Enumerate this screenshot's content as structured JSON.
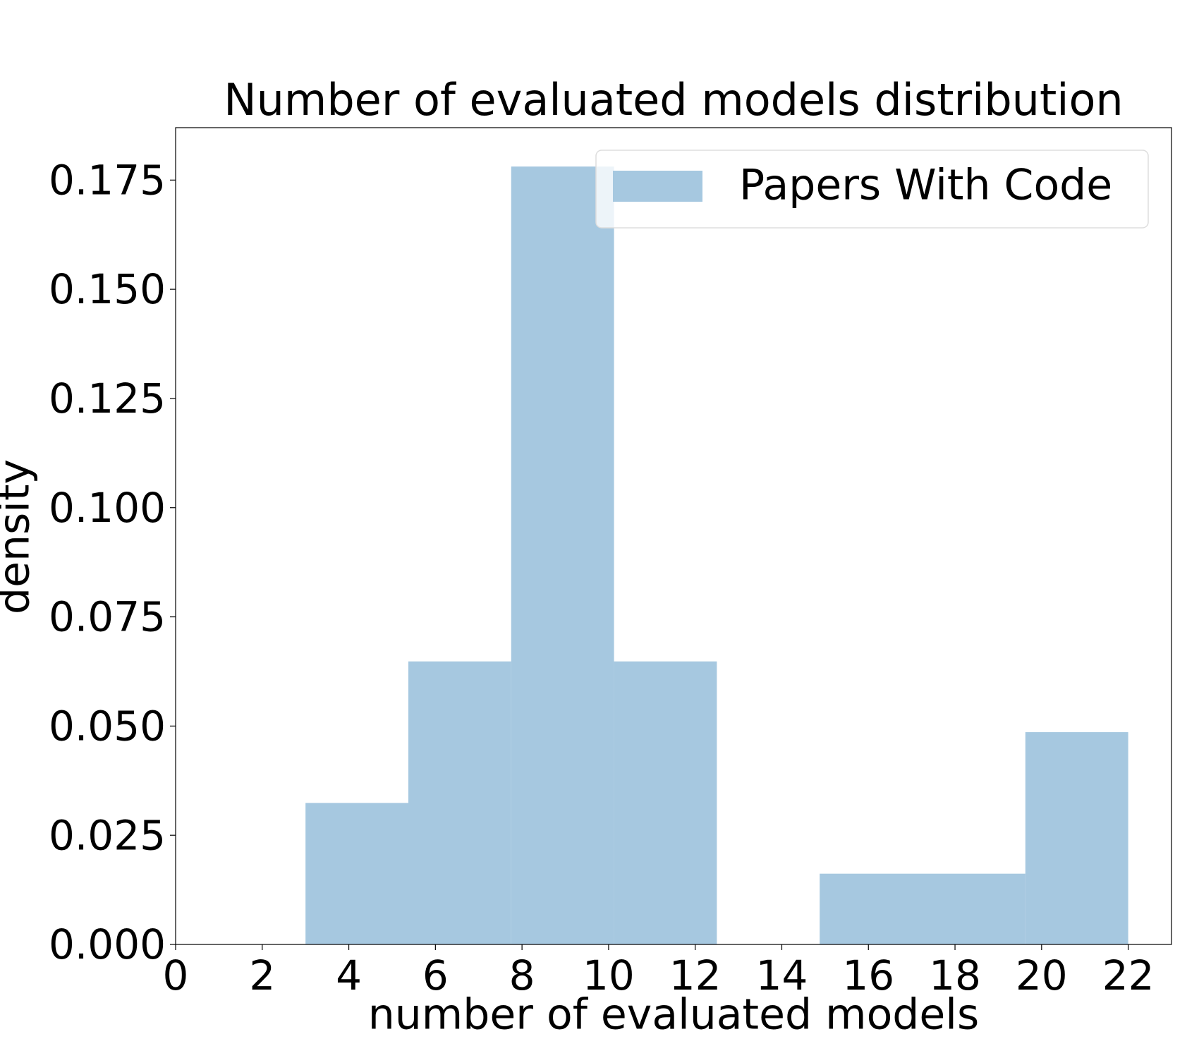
{
  "chart_data": {
    "type": "histogram",
    "title": "Number of evaluated models distribution",
    "xlabel": "number of evaluated models",
    "ylabel": "density",
    "bins": [
      3,
      5.375,
      7.75,
      10.125,
      12.5,
      14.875,
      17.25,
      19.625,
      22
    ],
    "series": [
      {
        "name": "Papers With Code",
        "color": "#a6c8e0",
        "values": [
          0.0324,
          0.0648,
          0.1781,
          0.0648,
          0,
          0.0162,
          0.0162,
          0.0486
        ]
      }
    ],
    "xlim": [
      0,
      23
    ],
    "xticks": [
      0,
      2,
      4,
      6,
      8,
      10,
      12,
      14,
      16,
      18,
      20,
      22
    ],
    "ylim": [
      0,
      0.187
    ],
    "yticks": [
      {
        "value": 0,
        "label": "0.000"
      },
      {
        "value": 0.025,
        "label": "0.025"
      },
      {
        "value": 0.05,
        "label": "0.050"
      },
      {
        "value": 0.075,
        "label": "0.075"
      },
      {
        "value": 0.1,
        "label": "0.100"
      },
      {
        "value": 0.125,
        "label": "0.125"
      },
      {
        "value": 0.15,
        "label": "0.150"
      },
      {
        "value": 0.175,
        "label": "0.175"
      }
    ],
    "legend": "upper right"
  }
}
